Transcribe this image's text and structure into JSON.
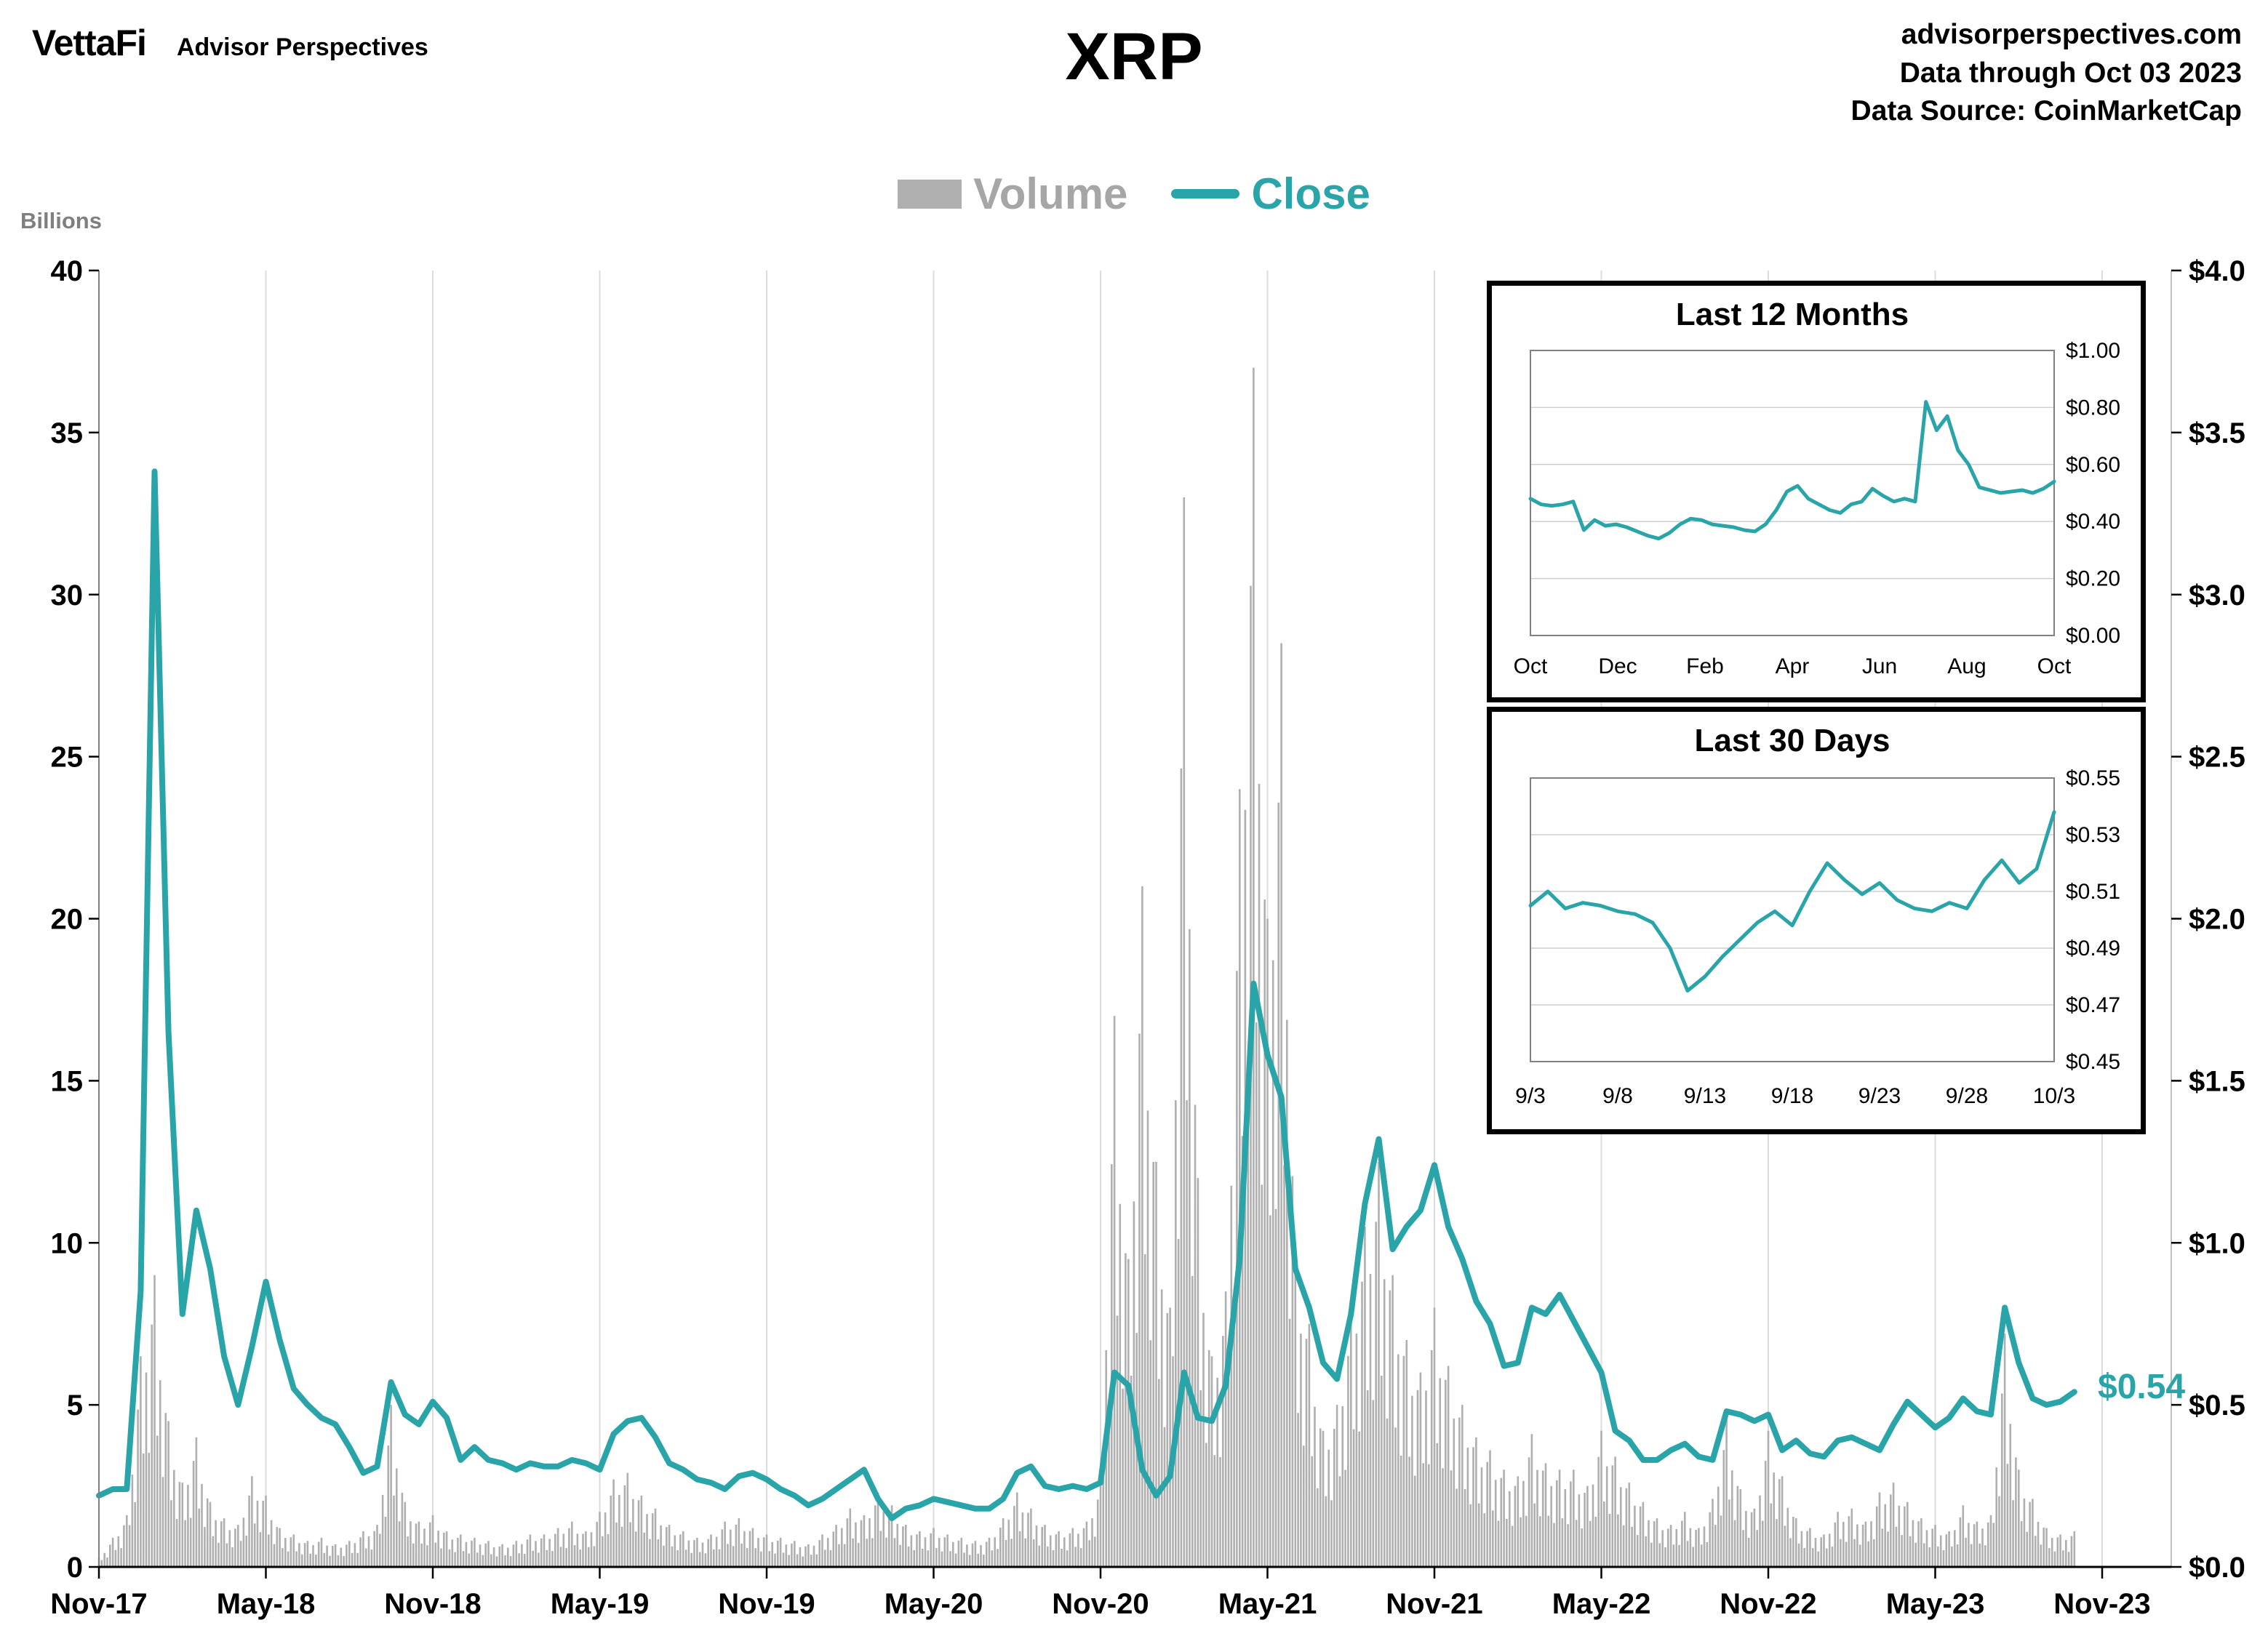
{
  "header": {
    "logo": "VettaFi",
    "logo_sub": "Advisor Perspectives",
    "title": "XRP",
    "source_site": "advisorperspectives.com",
    "data_through": "Data through Oct 03 2023",
    "data_source": "Data Source: CoinMarketCap"
  },
  "legend": {
    "volume": "Volume",
    "close": "Close"
  },
  "main_chart_meta": {
    "left_axis_title": "Billions",
    "end_label": "$0.54"
  },
  "colors": {
    "teal": "#29A4A8",
    "volume_gray": "#AFAFAF",
    "legend_gray": "#A6A6A6",
    "grid": "#DCDCDC",
    "axis": "#000000"
  },
  "chart_data": [
    {
      "id": "xrp-full-history",
      "type": "bar+line",
      "title": "XRP",
      "x_tick_labels": [
        "Nov-17",
        "May-18",
        "Nov-18",
        "May-19",
        "Nov-19",
        "May-20",
        "Nov-20",
        "May-21",
        "Nov-21",
        "May-22",
        "Nov-22",
        "May-23",
        "Nov-23"
      ],
      "left_axis": {
        "title": "Billions",
        "range": [
          0,
          40
        ],
        "tick_labels": [
          "0",
          "5",
          "10",
          "15",
          "20",
          "25",
          "30",
          "35",
          "40"
        ]
      },
      "right_axis": {
        "range": [
          0,
          4
        ],
        "tick_labels": [
          "$0.0",
          "$0.5",
          "$1.0",
          "$1.5",
          "$2.0",
          "$2.5",
          "$3.0",
          "$3.5",
          "$4.0"
        ]
      },
      "points_per_month": 2,
      "span_months": 72,
      "series": [
        {
          "name": "Volume",
          "type": "bar",
          "axis": "left",
          "unit": "billions",
          "values": [
            0.3,
            0.9,
            1.6,
            6.5,
            9.0,
            4.5,
            2.6,
            4.0,
            2.0,
            1.5,
            1.3,
            2.8,
            2.2,
            1.2,
            1.0,
            0.8,
            0.9,
            0.7,
            0.8,
            1.1,
            1.3,
            5.0,
            2.0,
            1.4,
            1.6,
            1.1,
            1.0,
            0.9,
            0.8,
            0.7,
            0.8,
            1.0,
            1.0,
            1.2,
            1.4,
            1.1,
            1.7,
            2.7,
            2.9,
            2.2,
            1.8,
            1.3,
            1.1,
            0.9,
            1.0,
            1.4,
            1.5,
            1.2,
            1.0,
            0.9,
            0.8,
            0.7,
            1.0,
            1.3,
            1.8,
            1.6,
            2.3,
            1.9,
            1.3,
            1.1,
            1.2,
            1.0,
            0.9,
            0.8,
            0.9,
            1.5,
            2.3,
            1.8,
            1.3,
            1.1,
            1.2,
            1.4,
            2.6,
            17.0,
            9.5,
            21.0,
            12.5,
            8.0,
            33.0,
            12.0,
            6.5,
            8.5,
            24.0,
            37.0,
            20.0,
            28.5,
            10.0,
            7.5,
            4.2,
            5.0,
            8.0,
            10.5,
            12.5,
            9.0,
            7.0,
            6.0,
            8.0,
            6.2,
            5.0,
            4.0,
            3.6,
            3.0,
            2.8,
            4.1,
            3.2,
            3.0,
            3.0,
            2.5,
            4.2,
            3.4,
            2.6,
            2.0,
            1.5,
            1.3,
            1.7,
            1.2,
            2.1,
            4.6,
            2.4,
            1.8,
            4.2,
            2.8,
            1.5,
            1.2,
            1.0,
            1.7,
            1.8,
            1.4,
            2.3,
            2.6,
            2.0,
            1.5,
            1.3,
            1.1,
            1.9,
            1.4,
            1.6,
            7.2,
            3.0,
            2.1,
            1.2,
            1.0,
            1.1
          ]
        },
        {
          "name": "Close",
          "type": "line",
          "axis": "right",
          "unit": "usd",
          "last_value_label": "$0.54",
          "values": [
            0.22,
            0.24,
            0.24,
            0.85,
            3.38,
            1.65,
            0.78,
            1.1,
            0.92,
            0.65,
            0.5,
            0.68,
            0.88,
            0.7,
            0.55,
            0.5,
            0.46,
            0.44,
            0.37,
            0.29,
            0.31,
            0.57,
            0.47,
            0.44,
            0.51,
            0.46,
            0.33,
            0.37,
            0.33,
            0.32,
            0.3,
            0.32,
            0.31,
            0.31,
            0.33,
            0.32,
            0.3,
            0.41,
            0.45,
            0.46,
            0.4,
            0.32,
            0.3,
            0.27,
            0.26,
            0.24,
            0.28,
            0.29,
            0.27,
            0.24,
            0.22,
            0.19,
            0.21,
            0.24,
            0.27,
            0.3,
            0.21,
            0.15,
            0.18,
            0.19,
            0.21,
            0.2,
            0.19,
            0.18,
            0.18,
            0.21,
            0.29,
            0.31,
            0.25,
            0.24,
            0.25,
            0.24,
            0.26,
            0.6,
            0.56,
            0.3,
            0.22,
            0.28,
            0.6,
            0.46,
            0.45,
            0.56,
            0.95,
            1.8,
            1.58,
            1.45,
            0.92,
            0.8,
            0.63,
            0.58,
            0.78,
            1.12,
            1.32,
            0.98,
            1.05,
            1.1,
            1.24,
            1.05,
            0.95,
            0.82,
            0.75,
            0.62,
            0.63,
            0.8,
            0.78,
            0.84,
            0.76,
            0.68,
            0.6,
            0.42,
            0.39,
            0.33,
            0.33,
            0.36,
            0.38,
            0.34,
            0.33,
            0.48,
            0.47,
            0.45,
            0.47,
            0.36,
            0.39,
            0.35,
            0.34,
            0.39,
            0.4,
            0.38,
            0.36,
            0.44,
            0.51,
            0.47,
            0.43,
            0.46,
            0.52,
            0.48,
            0.47,
            0.8,
            0.63,
            0.52,
            0.5,
            0.51,
            0.54
          ]
        }
      ]
    },
    {
      "id": "last-12-months",
      "type": "line",
      "title": "Last 12 Months",
      "x_tick_labels": [
        "Oct",
        "Dec",
        "Feb",
        "Apr",
        "Jun",
        "Aug",
        "Oct"
      ],
      "y_axis": {
        "range": [
          0,
          1
        ],
        "tick_labels": [
          "$0.00",
          "$0.20",
          "$0.40",
          "$0.60",
          "$0.80",
          "$1.00"
        ]
      },
      "values": [
        0.48,
        0.46,
        0.455,
        0.46,
        0.47,
        0.37,
        0.405,
        0.385,
        0.39,
        0.38,
        0.365,
        0.35,
        0.34,
        0.36,
        0.39,
        0.41,
        0.405,
        0.39,
        0.385,
        0.38,
        0.37,
        0.365,
        0.39,
        0.44,
        0.505,
        0.525,
        0.48,
        0.46,
        0.44,
        0.43,
        0.46,
        0.47,
        0.515,
        0.49,
        0.47,
        0.48,
        0.47,
        0.82,
        0.72,
        0.77,
        0.65,
        0.6,
        0.52,
        0.51,
        0.5,
        0.505,
        0.51,
        0.5,
        0.515,
        0.54
      ]
    },
    {
      "id": "last-30-days",
      "type": "line",
      "title": "Last 30 Days",
      "x_tick_labels": [
        "9/3",
        "9/8",
        "9/13",
        "9/18",
        "9/23",
        "9/28",
        "10/3"
      ],
      "y_axis": {
        "range": [
          0.45,
          0.55
        ],
        "tick_labels": [
          "$0.45",
          "$0.47",
          "$0.49",
          "$0.51",
          "$0.53",
          "$0.55"
        ]
      },
      "values": [
        0.505,
        0.51,
        0.504,
        0.506,
        0.505,
        0.503,
        0.502,
        0.499,
        0.49,
        0.475,
        0.48,
        0.487,
        0.493,
        0.499,
        0.503,
        0.498,
        0.51,
        0.52,
        0.514,
        0.509,
        0.513,
        0.507,
        0.504,
        0.503,
        0.506,
        0.504,
        0.514,
        0.521,
        0.513,
        0.518,
        0.538
      ]
    }
  ]
}
